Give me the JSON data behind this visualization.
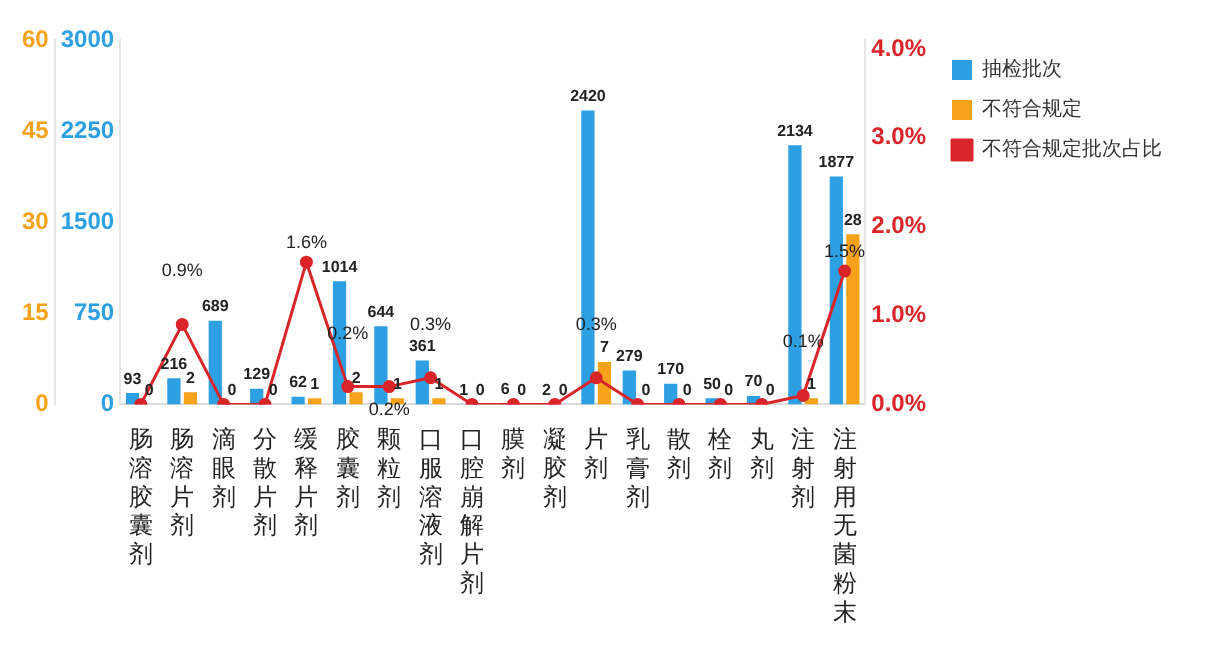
{
  "chart_data": {
    "type": "bar",
    "categories": [
      "肠溶胶囊剂",
      "肠溶片剂",
      "滴眼剂",
      "分散片剂",
      "缓释片剂",
      "胶囊剂",
      "颗粒剂",
      "口服溶液剂",
      "口腔崩解片剂",
      "膜剂",
      "凝胶剂",
      "片剂",
      "乳膏剂",
      "散剂",
      "栓剂",
      "丸剂",
      "注射剂",
      "注射用无菌粉末"
    ],
    "series": [
      {
        "name": "抽检批次",
        "color": "#2d9fe3",
        "values": [
          93,
          216,
          689,
          129,
          62,
          1014,
          644,
          361,
          1,
          6,
          2,
          2420,
          279,
          170,
          50,
          70,
          2134,
          1877
        ]
      },
      {
        "name": "不符合规定",
        "axis": "y2",
        "color": "#f7a21b",
        "values": [
          0,
          2,
          0,
          0,
          1,
          2,
          1,
          1,
          0,
          0,
          0,
          7,
          0,
          0,
          0,
          0,
          1,
          28
        ]
      },
      {
        "name": "不符合规定批次占比",
        "type": "line",
        "axis": "y3",
        "color": "#d9252a",
        "marker": "circle",
        "values": [
          0,
          0.9,
          0,
          0,
          1.6,
          0.2,
          0.2,
          0.3,
          0,
          0,
          0,
          0.3,
          0,
          0,
          0,
          0,
          0.1,
          1.5
        ],
        "value_labels": [
          null,
          "0.9%",
          null,
          null,
          "1.6%",
          "0.2%",
          "0.2%",
          "0.3%",
          null,
          null,
          null,
          "0.3%",
          null,
          null,
          null,
          null,
          "0.1%",
          "1.5%"
        ]
      }
    ],
    "ylim": [
      0,
      3000
    ],
    "yticks": [
      0,
      750,
      1500,
      2250,
      3000
    ],
    "y2lim": [
      0,
      60
    ],
    "y2ticks": [
      0,
      15,
      30,
      45,
      60
    ],
    "y3lim": [
      0,
      4.1
    ],
    "y3ticks": [
      {
        "value": 0,
        "label": "0.0%"
      },
      {
        "value": 1,
        "label": "1.0%"
      },
      {
        "value": 2,
        "label": "2.0%"
      },
      {
        "value": 3,
        "label": "3.0%"
      },
      {
        "value": 4,
        "label": "4.0%"
      }
    ],
    "data_labels": true,
    "grid": false,
    "legend": "top right"
  }
}
